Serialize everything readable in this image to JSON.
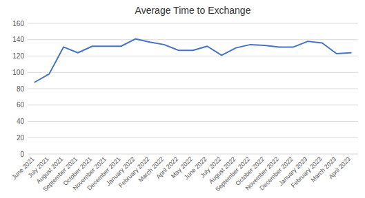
{
  "chart_data": {
    "type": "line",
    "title": "Average Time to Exchange",
    "categories": [
      "June 2021",
      "July 2021",
      "August 2021",
      "September 2021",
      "October 2021",
      "November 2021",
      "December 2021",
      "January 2022",
      "February 2022",
      "March 2022",
      "April 2022",
      "May 2022",
      "June 2022",
      "July 2022",
      "August 2022",
      "September 2022",
      "October 2022",
      "November 2022",
      "December 2022",
      "January 2023",
      "February 2023",
      "March 2023",
      "April 2023"
    ],
    "values": [
      88,
      98,
      131,
      124,
      132,
      132,
      132,
      141,
      137,
      134,
      127,
      127,
      132,
      121,
      130,
      134,
      133,
      131,
      131,
      138,
      136,
      123,
      124
    ],
    "color": "#4472C4",
    "ylim": [
      0,
      160
    ],
    "yticks": [
      0,
      20,
      40,
      60,
      80,
      100,
      120,
      140,
      160
    ],
    "grid": true
  }
}
